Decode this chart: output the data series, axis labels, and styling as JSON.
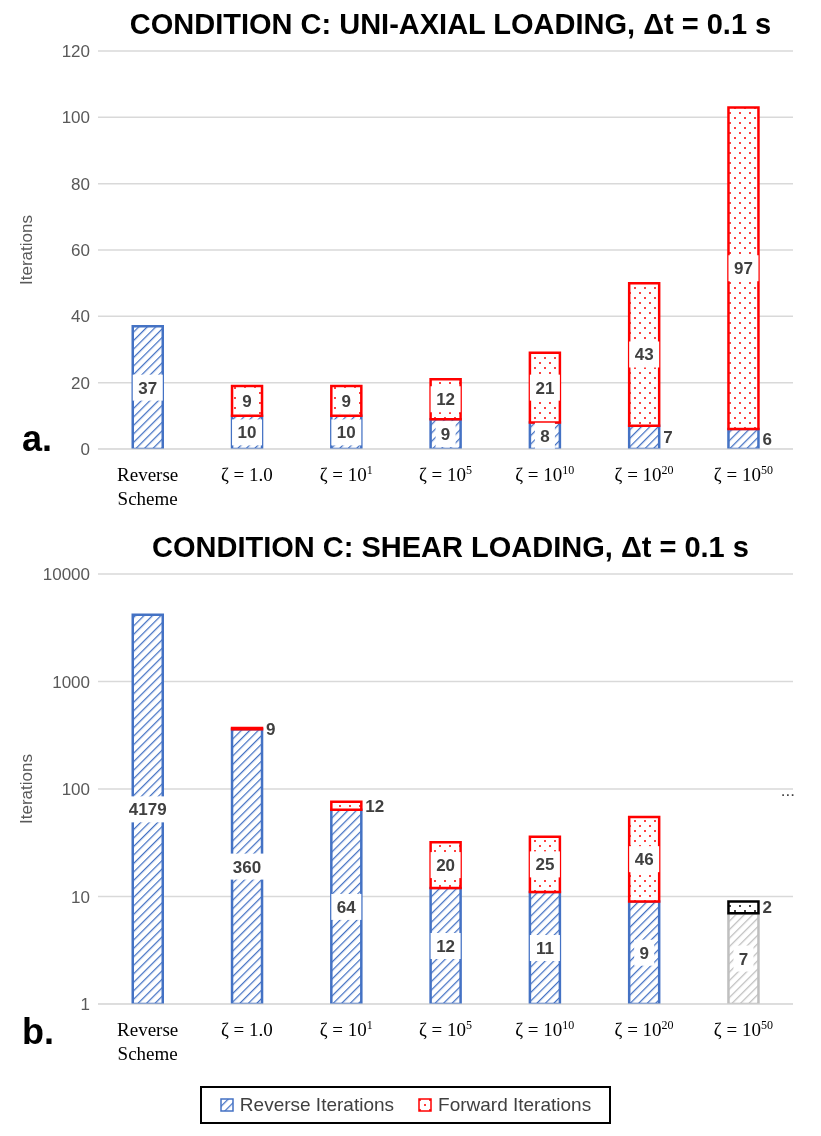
{
  "chart_data": [
    {
      "type": "bar",
      "title": "CONDITION C: UNI-AXIAL LOADING, Δt = 0.1 s",
      "ylabel": "Iterations",
      "categories": [
        "Reverse Scheme",
        "ζ = 1.0",
        "ζ = 10$^{1}$",
        "ζ = 10$^{5}$",
        "ζ = 10$^{10}$",
        "ζ = 10$^{20}$",
        "ζ = 10$^{50}$"
      ],
      "series": [
        {
          "color": "#4472c4",
          "values": [
            37,
            10,
            10,
            9,
            8,
            7,
            6
          ]
        },
        {
          "color": "#ff0000",
          "values": [
            null,
            9,
            9,
            12,
            21,
            43,
            97
          ]
        }
      ],
      "stacked": true,
      "ylim": [
        0,
        120
      ],
      "yticks": [
        0,
        20,
        40,
        60,
        80,
        100,
        120
      ],
      "grid": "y",
      "data_labels": true,
      "legend": false,
      "annotations": [
        "a."
      ]
    },
    {
      "type": "bar",
      "title": "CONDITION C: SHEAR LOADING, Δt = 0.1 s",
      "ylabel": "Iterations",
      "categories": [
        "Reverse Scheme",
        "ζ = 1.0",
        "ζ = 10$^{1}$",
        "ζ = 10$^{5}$",
        "ζ = 10$^{10}$",
        "ζ = 10$^{20}$",
        "ζ = 10$^{50}$"
      ],
      "series": [
        {
          "name": "Reverse Iterations",
          "color": "#4472c4",
          "colors": [
            "#4472c4",
            "#4472c4",
            "#4472c4",
            "#4472c4",
            "#4472c4",
            "#4472c4",
            "#bfbfbf"
          ],
          "values": [
            4179,
            360,
            64,
            12,
            11,
            9,
            7
          ]
        },
        {
          "name": "Forward Iterations",
          "color": "#ff0000",
          "colors": [
            "#ff0000",
            "#ff0000",
            "#ff0000",
            "#ff0000",
            "#ff0000",
            "#ff0000",
            "#000000"
          ],
          "values": [
            null,
            9,
            12,
            20,
            25,
            46,
            2
          ]
        }
      ],
      "stacked": true,
      "log": true,
      "ylim": [
        1,
        10000
      ],
      "yticks": [
        1,
        10,
        100,
        1000,
        10000
      ],
      "grid": "y",
      "data_labels": true,
      "legend": "bottom",
      "annotations": [
        "b.",
        "..."
      ]
    }
  ]
}
